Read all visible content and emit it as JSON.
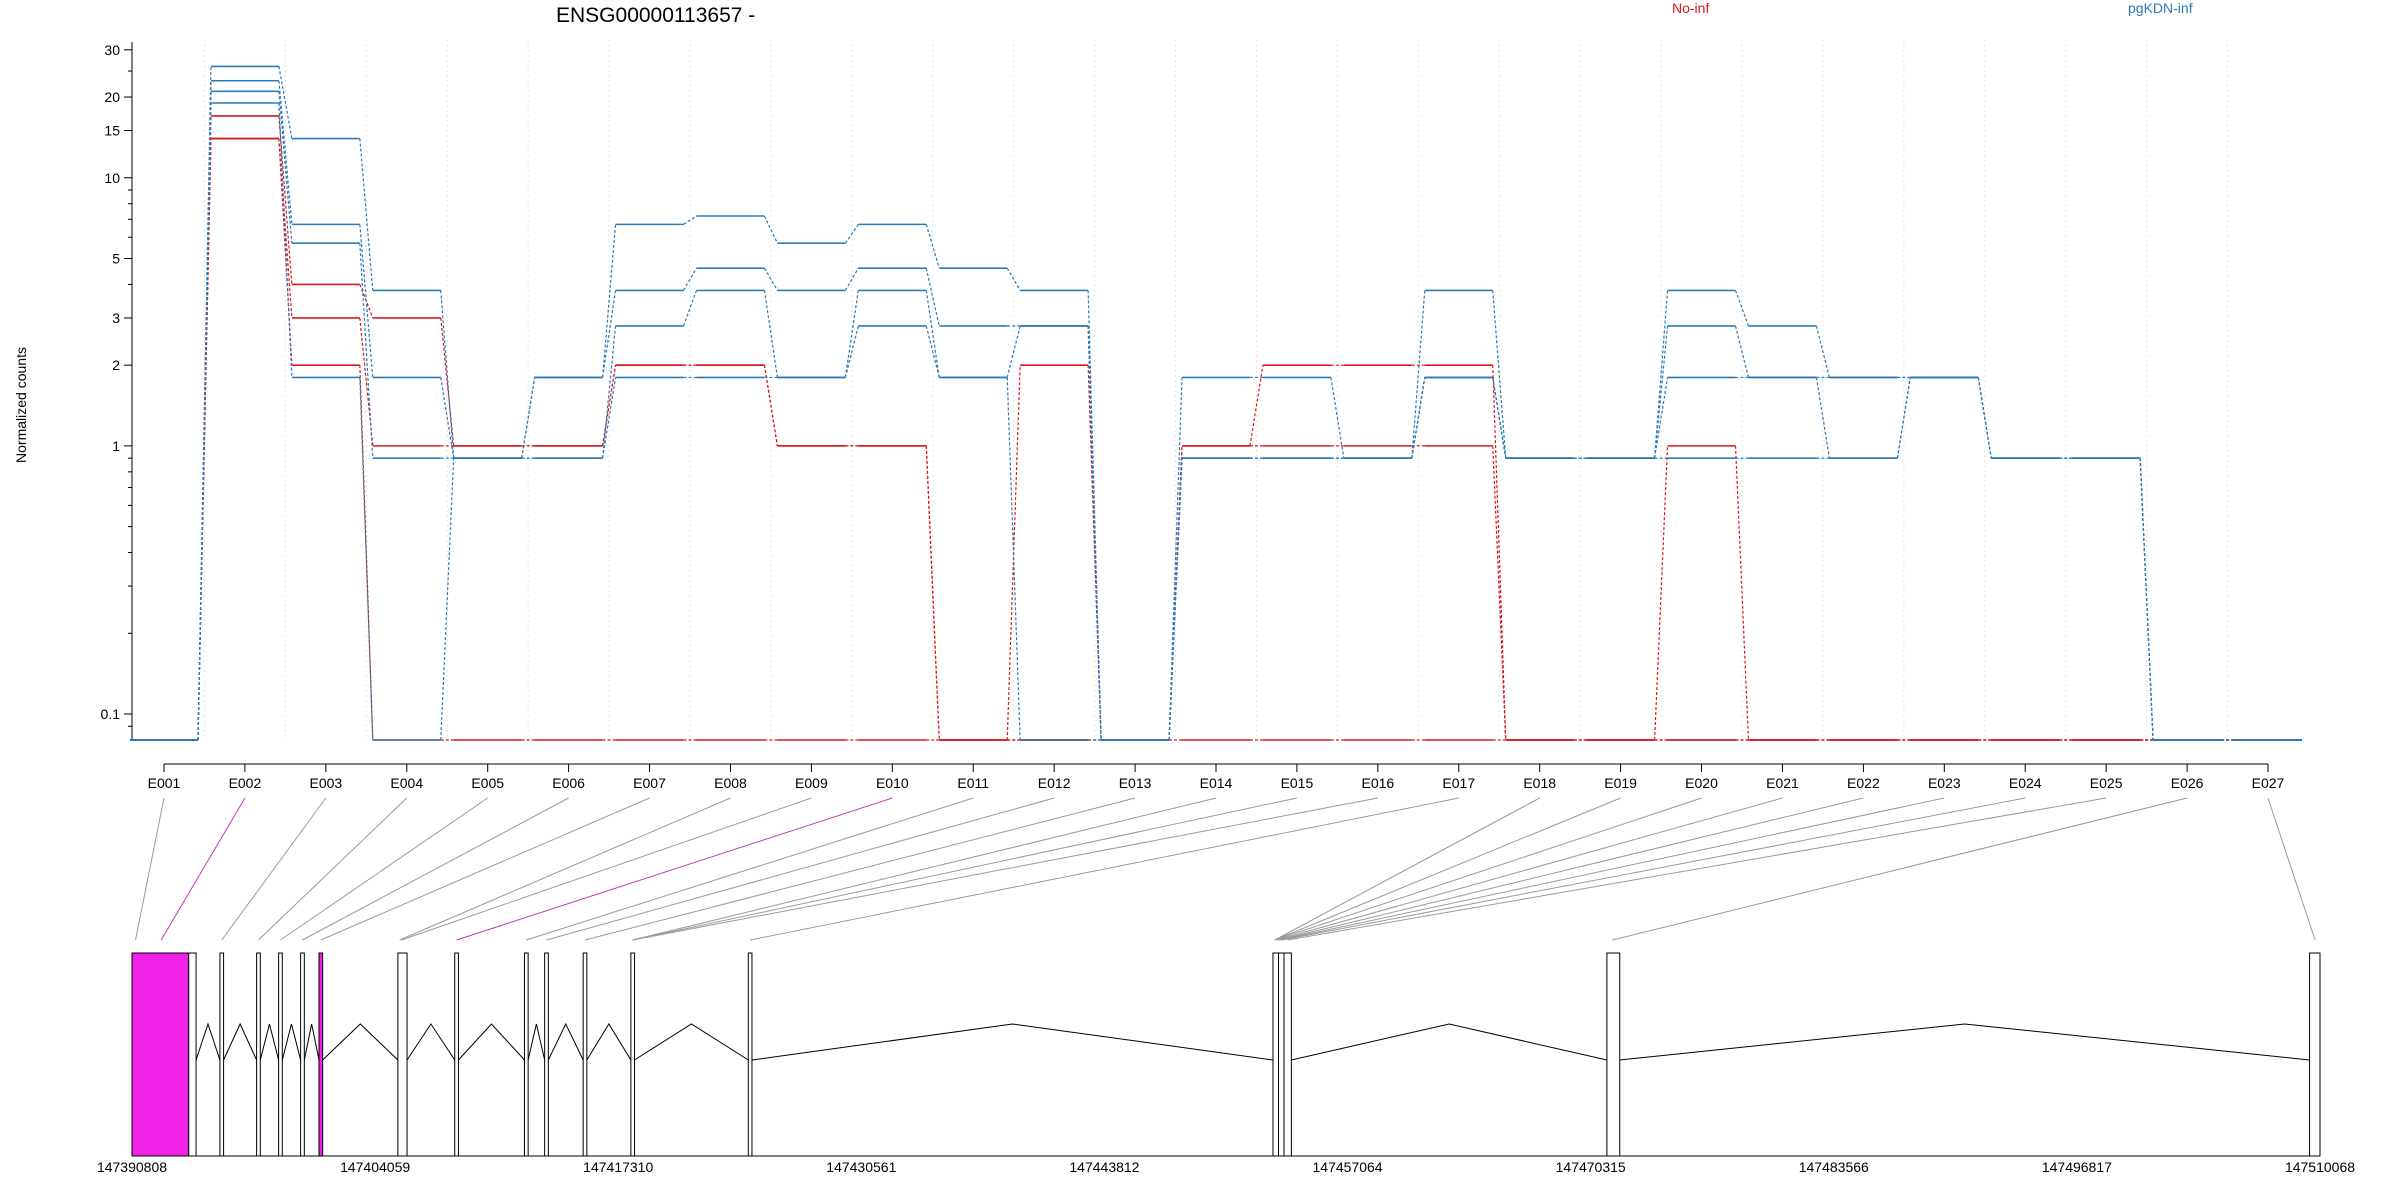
{
  "chart_data": {
    "type": "line",
    "title": "ENSG00000113657 -",
    "ylabel": "Normalized counts",
    "yscale": "log",
    "ylim": [
      0.08,
      31
    ],
    "yticks": [
      0.1,
      1,
      2,
      3,
      5,
      10,
      15,
      20,
      30
    ],
    "ytick_labels": [
      "0.1",
      "1",
      "2",
      "3",
      "5",
      "10",
      "15",
      "20",
      "30"
    ],
    "categories": [
      "E001",
      "E002",
      "E003",
      "E004",
      "E005",
      "E006",
      "E007",
      "E008",
      "E009",
      "E010",
      "E011",
      "E012",
      "E013",
      "E014",
      "E015",
      "E016",
      "E017",
      "E018",
      "E019",
      "E020",
      "E021",
      "E022",
      "E023",
      "E024",
      "E025",
      "E026",
      "E027"
    ],
    "legend": [
      {
        "label": "No-inf",
        "color": "#d7191c"
      },
      {
        "label": "pgKDN-inf",
        "color": "#2c7bb6"
      }
    ],
    "series": [
      {
        "group": "No-inf",
        "color": "#d7191c",
        "values": [
          0.08,
          17,
          4,
          3,
          1,
          1,
          2,
          2,
          1,
          1,
          0.08,
          2,
          0.08,
          1,
          2,
          2,
          2,
          0.08,
          0.08,
          1,
          0.08,
          0.08,
          0.08,
          0.08,
          0.08,
          0.08,
          0.08
        ]
      },
      {
        "group": "No-inf",
        "color": "#d7191c",
        "values": [
          0.08,
          14,
          3,
          1,
          1,
          1,
          2,
          2,
          1,
          1,
          0.08,
          0.08,
          0.08,
          1,
          1,
          1,
          1,
          0.08,
          0.08,
          0.08,
          0.08,
          0.08,
          0.08,
          0.08,
          0.08,
          0.08,
          0.08
        ]
      },
      {
        "group": "No-inf",
        "color": "#d7191c",
        "values": [
          0.08,
          14,
          2,
          0.08,
          0.08,
          0.08,
          0.08,
          0.08,
          0.08,
          0.08,
          0.08,
          0.08,
          0.08,
          0.08,
          0.08,
          0.08,
          0.08,
          0.08,
          0.08,
          0.08,
          0.08,
          0.08,
          0.08,
          0.08,
          0.08,
          0.08,
          0.08
        ]
      },
      {
        "group": "pgKDN-inf",
        "color": "#2c7bb6",
        "values": [
          0.08,
          26,
          14,
          3.8,
          0.9,
          1.8,
          6.7,
          7.2,
          5.7,
          6.7,
          4.6,
          3.8,
          0.08,
          1.8,
          1.8,
          0.9,
          3.8,
          0.9,
          0.9,
          3.8,
          2.8,
          1.8,
          1.8,
          0.9,
          0.9,
          0.08,
          0.08
        ]
      },
      {
        "group": "pgKDN-inf",
        "color": "#2c7bb6",
        "values": [
          0.08,
          23,
          6.7,
          1.8,
          0.9,
          1.8,
          3.8,
          4.6,
          3.8,
          4.6,
          2.8,
          2.8,
          0.08,
          0.9,
          0.9,
          0.9,
          1.8,
          0.9,
          0.9,
          2.8,
          1.8,
          1.8,
          1.8,
          0.9,
          0.9,
          0.08,
          0.08
        ]
      },
      {
        "group": "pgKDN-inf",
        "color": "#2c7bb6",
        "values": [
          0.08,
          21,
          5.7,
          0.9,
          0.9,
          0.9,
          2.8,
          3.8,
          1.8,
          3.8,
          1.8,
          2.8,
          0.08,
          0.9,
          0.9,
          0.9,
          1.8,
          0.9,
          0.9,
          1.8,
          1.8,
          0.9,
          1.8,
          0.9,
          0.9,
          0.08,
          0.08
        ]
      },
      {
        "group": "pgKDN-inf",
        "color": "#2c7bb6",
        "values": [
          0.08,
          19,
          1.8,
          0.08,
          0.9,
          0.9,
          1.8,
          1.8,
          1.8,
          2.8,
          1.8,
          0.08,
          0.08,
          0.9,
          0.9,
          0.9,
          1.8,
          0.9,
          0.9,
          0.9,
          0.9,
          0.9,
          1.8,
          0.9,
          0.9,
          0.08,
          0.08
        ]
      }
    ],
    "gene_model": {
      "coordinate_ticks": [
        "147390808",
        "147404059",
        "147417310",
        "147430561",
        "147443812",
        "147457064",
        "147470315",
        "147483566",
        "147496817",
        "147510068"
      ],
      "start": 147390808,
      "end": 147510068,
      "highlight_color": "#f022e6",
      "exons": [
        {
          "start": 147390808,
          "end": 147393900,
          "highlight": true
        },
        {
          "start": 147393900,
          "end": 147394300,
          "highlight": false
        },
        {
          "start": 147395600,
          "end": 147395800,
          "highlight": false
        },
        {
          "start": 147397600,
          "end": 147397800,
          "highlight": false
        },
        {
          "start": 147398800,
          "end": 147399000,
          "highlight": false
        },
        {
          "start": 147400000,
          "end": 147400200,
          "highlight": false
        },
        {
          "start": 147401000,
          "end": 147401200,
          "highlight": true
        },
        {
          "start": 147405300,
          "end": 147405800,
          "highlight": false
        },
        {
          "start": 147408400,
          "end": 147408600,
          "highlight": false
        },
        {
          "start": 147412200,
          "end": 147412400,
          "highlight": false
        },
        {
          "start": 147413300,
          "end": 147413500,
          "highlight": false
        },
        {
          "start": 147415400,
          "end": 147415600,
          "highlight": false
        },
        {
          "start": 147418000,
          "end": 147418200,
          "highlight": false
        },
        {
          "start": 147424400,
          "end": 147424600,
          "highlight": false
        },
        {
          "start": 147453000,
          "end": 147453300,
          "highlight": false
        },
        {
          "start": 147453300,
          "end": 147453600,
          "highlight": false
        },
        {
          "start": 147453600,
          "end": 147454000,
          "highlight": false
        },
        {
          "start": 147471200,
          "end": 147471900,
          "highlight": false
        },
        {
          "start": 147509500,
          "end": 147510068,
          "highlight": false
        }
      ],
      "link_targets": [
        147391000,
        147392400,
        147395700,
        147397700,
        147398900,
        147400100,
        147401100,
        147405400,
        147405500,
        147408500,
        147412300,
        147413400,
        147415500,
        147418100,
        147418100,
        147418100,
        147424500,
        147453100,
        147453100,
        147453100,
        147453200,
        147453300,
        147453400,
        147453500,
        147453800,
        147471500,
        147509800
      ],
      "link_highlight": [
        false,
        true,
        false,
        false,
        false,
        false,
        false,
        false,
        false,
        true,
        false,
        false,
        false,
        false,
        false,
        false,
        false,
        false,
        false,
        false,
        false,
        false,
        false,
        false,
        false,
        false,
        false
      ]
    }
  }
}
